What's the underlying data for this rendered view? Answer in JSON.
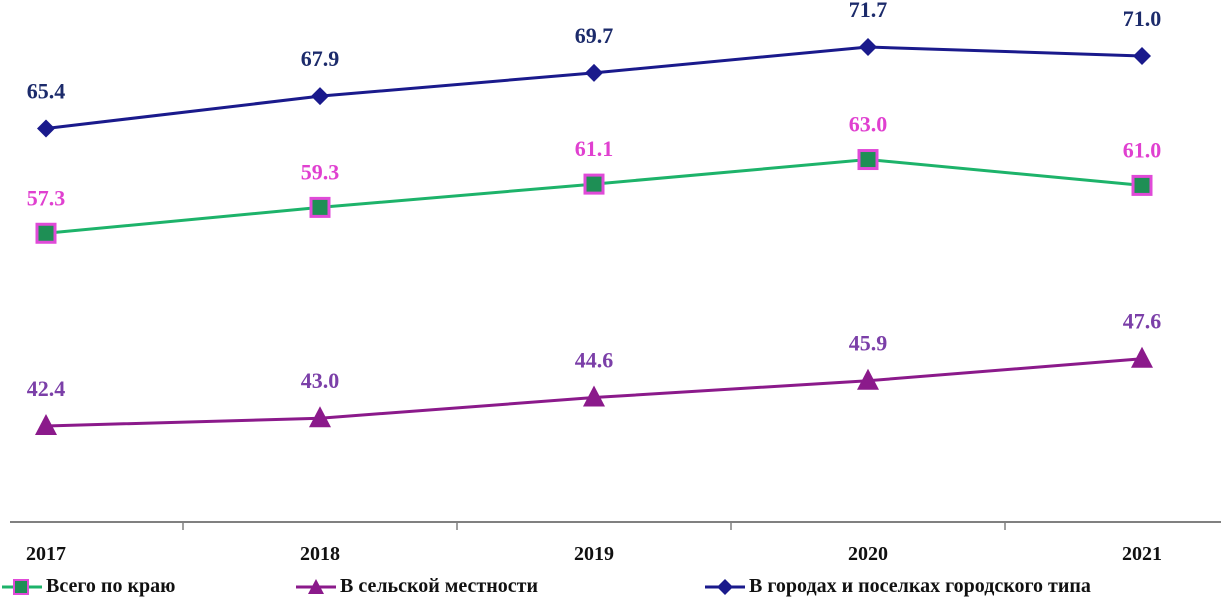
{
  "chart_data": {
    "type": "line",
    "categories": [
      "2017",
      "2018",
      "2019",
      "2020",
      "2021"
    ],
    "ylim": [
      35,
      75
    ],
    "grid": false,
    "legend_position": "bottom",
    "series": [
      {
        "name": "Всего по краю",
        "values": [
          57.3,
          59.3,
          61.1,
          63.0,
          61.0
        ],
        "labels": [
          "57.3",
          "59.3",
          "61.1",
          "63.0",
          "61.0"
        ],
        "color": "#1db36a",
        "marker_color": "#1e8f55",
        "marker_border": "#e04ad8",
        "label_color": "#e040d0",
        "marker": "square"
      },
      {
        "name": "В сельской местности",
        "values": [
          42.4,
          43.0,
          44.6,
          45.9,
          47.6
        ],
        "labels": [
          "42.4",
          "43.0",
          "44.6",
          "45.9",
          "47.6"
        ],
        "color": "#8b1a8b",
        "marker_color": "#8b1a8b",
        "label_color": "#7b3fa8",
        "marker": "triangle"
      },
      {
        "name": "В городах и поселках городского типа",
        "values": [
          65.4,
          67.9,
          69.7,
          71.7,
          71.0
        ],
        "labels": [
          "65.4",
          "67.9",
          "69.7",
          "71.7",
          "71.0"
        ],
        "color": "#1a1a8c",
        "marker_color": "#1a1a8c",
        "label_color": "#1c2b6b",
        "marker": "diamond"
      }
    ]
  }
}
